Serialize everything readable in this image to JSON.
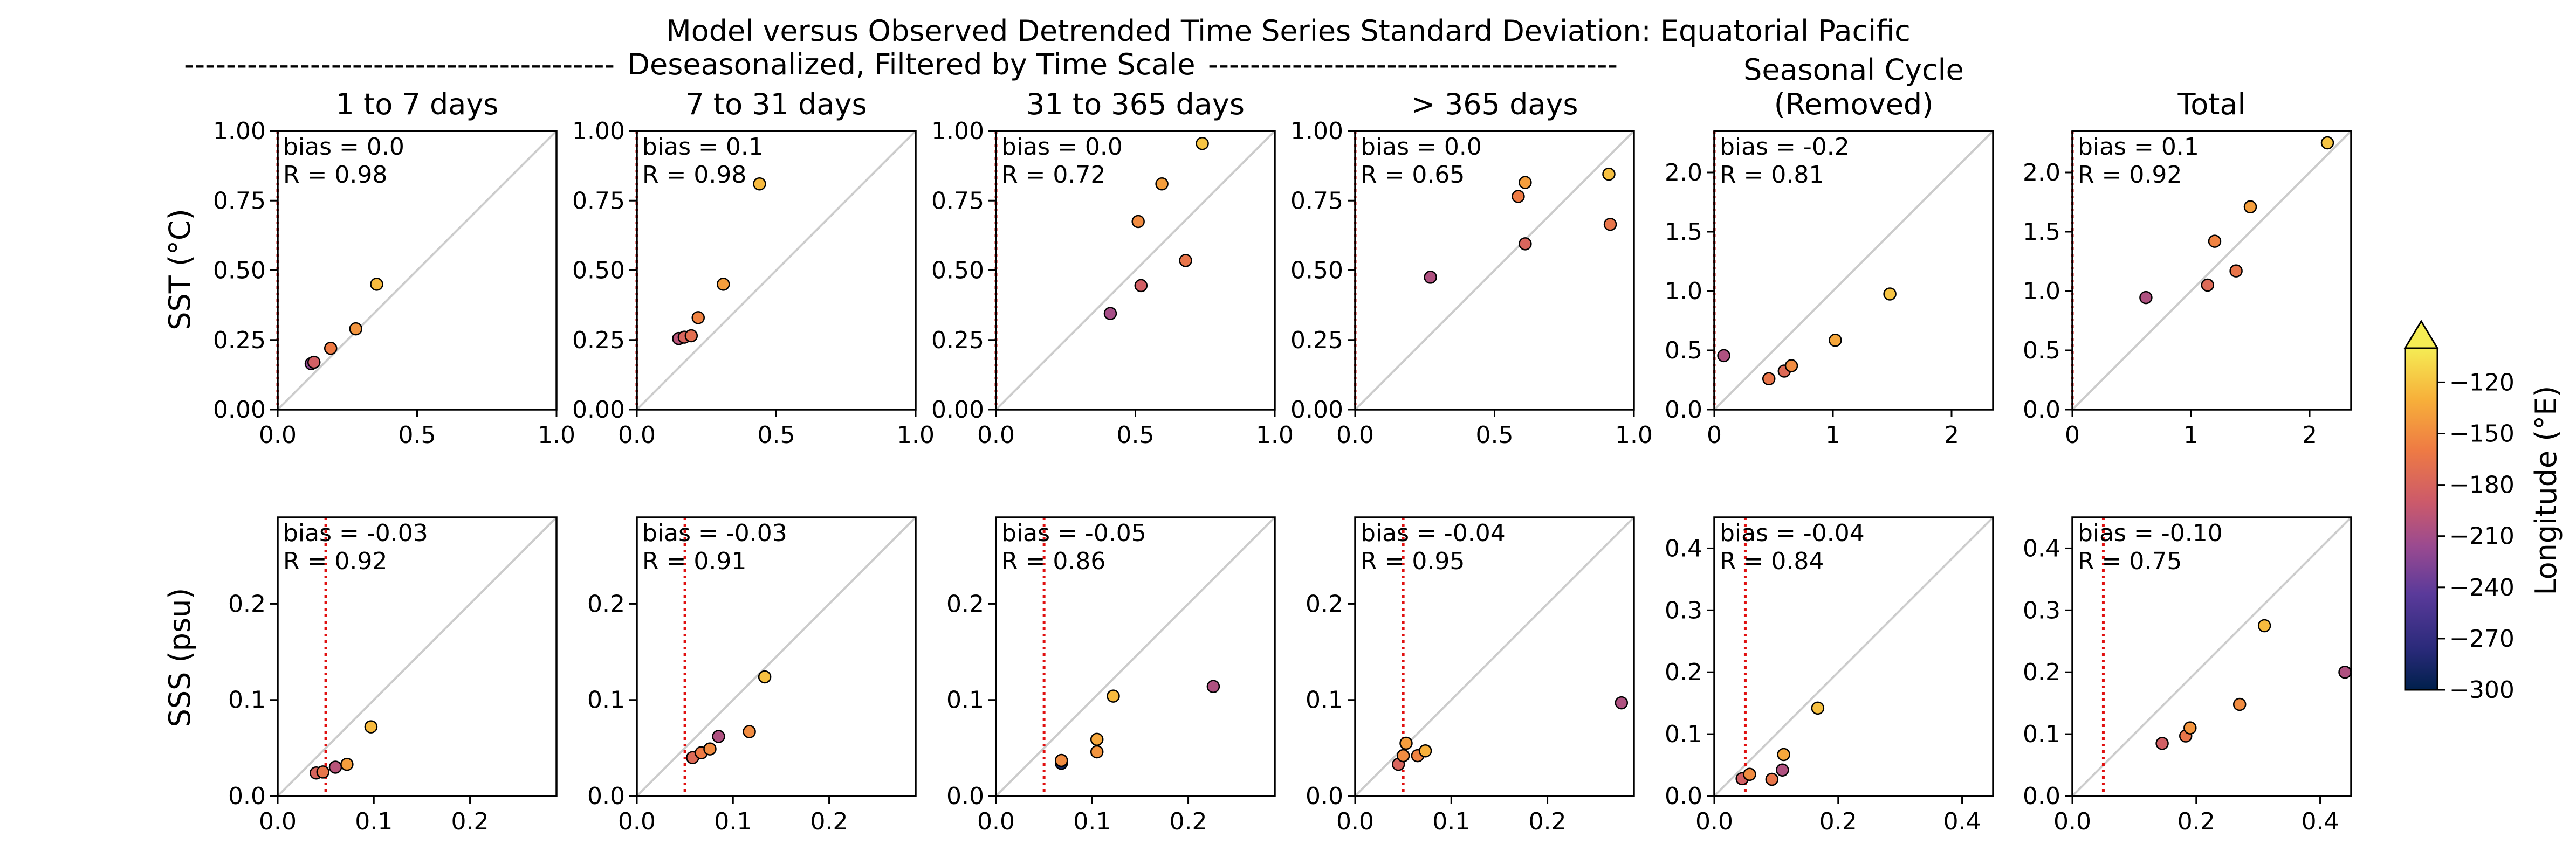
{
  "figure": {
    "title": "Model versus Observed Detrended Time Series Standard Deviation: Equatorial Pacific",
    "subtitle": "Deseasonalized, Filtered by Time Scale",
    "subtitle_dashes_left": "-----------------------------------------",
    "subtitle_dashes_right": "---------------------------------------"
  },
  "row_labels": [
    "SST (°C)",
    "SSS (psu)"
  ],
  "column_titles": [
    [
      "1 to 7 days"
    ],
    [
      "7 to 31 days"
    ],
    [
      "31 to 365 days"
    ],
    [
      ">  365 days"
    ],
    [
      "Seasonal Cycle",
      "(Removed)"
    ],
    [
      "Total"
    ]
  ],
  "colorbar": {
    "label": "Longitude (°E)",
    "ticks": [
      "−120",
      "−150",
      "−180",
      "−210",
      "−240",
      "−270",
      "−300"
    ],
    "tick_values": [
      -120,
      -150,
      -180,
      -210,
      -240,
      -270,
      -300
    ],
    "range": [
      -300,
      -100
    ],
    "extend": "max",
    "colormap": "plasma-like (dark navy → purple → red → orange → yellow)"
  },
  "chart_data": [
    {
      "type": "scatter",
      "row": 0,
      "col": 0,
      "xlim": [
        0,
        1
      ],
      "ylim": [
        0,
        1
      ],
      "xticks": [
        "0.0",
        "0.5",
        "1.0"
      ],
      "yticks": [
        "0.00",
        "0.25",
        "0.50",
        "0.75",
        "1.00"
      ],
      "xtick_values": [
        0,
        0.5,
        1
      ],
      "ytick_values": [
        0,
        0.25,
        0.5,
        0.75,
        1
      ],
      "vline": 0.0,
      "bias_text": "bias = 0.0",
      "r_text": "R = 0.98",
      "points": [
        {
          "x": 0.12,
          "y": 0.165,
          "lon": -220
        },
        {
          "x": 0.13,
          "y": 0.17,
          "lon": -185
        },
        {
          "x": 0.19,
          "y": 0.22,
          "lon": -160
        },
        {
          "x": 0.28,
          "y": 0.29,
          "lon": -145
        },
        {
          "x": 0.355,
          "y": 0.45,
          "lon": -125
        }
      ]
    },
    {
      "type": "scatter",
      "row": 0,
      "col": 1,
      "xlim": [
        0,
        1
      ],
      "ylim": [
        0,
        1
      ],
      "xticks": [
        "0.0",
        "0.5",
        "1.0"
      ],
      "yticks": [
        "0.00",
        "0.25",
        "0.50",
        "0.75",
        "1.00"
      ],
      "xtick_values": [
        0,
        0.5,
        1
      ],
      "ytick_values": [
        0,
        0.25,
        0.5,
        0.75,
        1
      ],
      "vline": 0.0,
      "bias_text": "bias = 0.1",
      "r_text": "R = 0.98",
      "points": [
        {
          "x": 0.15,
          "y": 0.255,
          "lon": -200
        },
        {
          "x": 0.17,
          "y": 0.26,
          "lon": -180
        },
        {
          "x": 0.195,
          "y": 0.265,
          "lon": -170
        },
        {
          "x": 0.22,
          "y": 0.33,
          "lon": -155
        },
        {
          "x": 0.31,
          "y": 0.45,
          "lon": -140
        },
        {
          "x": 0.44,
          "y": 0.81,
          "lon": -125
        }
      ]
    },
    {
      "type": "scatter",
      "row": 0,
      "col": 2,
      "xlim": [
        0,
        1
      ],
      "ylim": [
        0,
        1
      ],
      "xticks": [
        "0.0",
        "0.5",
        "1.0"
      ],
      "yticks": [
        "0.00",
        "0.25",
        "0.50",
        "0.75",
        "1.00"
      ],
      "xtick_values": [
        0,
        0.5,
        1
      ],
      "ytick_values": [
        0,
        0.25,
        0.5,
        0.75,
        1
      ],
      "vline": 0.0,
      "bias_text": "bias = 0.0",
      "r_text": "R = 0.72",
      "points": [
        {
          "x": 0.41,
          "y": 0.345,
          "lon": -210
        },
        {
          "x": 0.52,
          "y": 0.445,
          "lon": -185
        },
        {
          "x": 0.51,
          "y": 0.675,
          "lon": -150
        },
        {
          "x": 0.68,
          "y": 0.535,
          "lon": -165
        },
        {
          "x": 0.595,
          "y": 0.81,
          "lon": -140
        },
        {
          "x": 0.74,
          "y": 0.955,
          "lon": -120
        }
      ]
    },
    {
      "type": "scatter",
      "row": 0,
      "col": 3,
      "xlim": [
        0,
        1
      ],
      "ylim": [
        0,
        1
      ],
      "xticks": [
        "0.0",
        "0.5",
        "1.0"
      ],
      "yticks": [
        "0.00",
        "0.25",
        "0.50",
        "0.75",
        "1.00"
      ],
      "xtick_values": [
        0,
        0.5,
        1
      ],
      "ytick_values": [
        0,
        0.25,
        0.5,
        0.75,
        1
      ],
      "vline": 0.0,
      "bias_text": "bias = 0.0",
      "r_text": "R = 0.65",
      "points": [
        {
          "x": 0.27,
          "y": 0.475,
          "lon": -205
        },
        {
          "x": 0.61,
          "y": 0.595,
          "lon": -180
        },
        {
          "x": 0.585,
          "y": 0.765,
          "lon": -160
        },
        {
          "x": 0.61,
          "y": 0.815,
          "lon": -140
        },
        {
          "x": 0.915,
          "y": 0.665,
          "lon": -165
        },
        {
          "x": 0.91,
          "y": 0.845,
          "lon": -122
        }
      ]
    },
    {
      "type": "scatter",
      "row": 0,
      "col": 4,
      "xlim": [
        0,
        2.35
      ],
      "ylim": [
        0,
        2.35
      ],
      "xticks": [
        "0",
        "1",
        "2"
      ],
      "yticks": [
        "0.0",
        "0.5",
        "1.0",
        "1.5",
        "2.0"
      ],
      "xtick_values": [
        0,
        1,
        2
      ],
      "ytick_values": [
        0,
        0.5,
        1,
        1.5,
        2
      ],
      "vline": 0.0,
      "bias_text": "bias = -0.2",
      "r_text": "R = 0.81",
      "points": [
        {
          "x": 0.08,
          "y": 0.455,
          "lon": -205
        },
        {
          "x": 0.46,
          "y": 0.26,
          "lon": -165
        },
        {
          "x": 0.59,
          "y": 0.325,
          "lon": -175
        },
        {
          "x": 0.65,
          "y": 0.37,
          "lon": -150
        },
        {
          "x": 1.02,
          "y": 0.585,
          "lon": -135
        },
        {
          "x": 1.48,
          "y": 0.975,
          "lon": -120
        }
      ]
    },
    {
      "type": "scatter",
      "row": 0,
      "col": 5,
      "xlim": [
        0,
        2.35
      ],
      "ylim": [
        0,
        2.35
      ],
      "xticks": [
        "0",
        "1",
        "2"
      ],
      "yticks": [
        "0.0",
        "0.5",
        "1.0",
        "1.5",
        "2.0"
      ],
      "xtick_values": [
        0,
        1,
        2
      ],
      "ytick_values": [
        0,
        0.5,
        1,
        1.5,
        2
      ],
      "vline": 0.0,
      "bias_text": "bias = 0.1",
      "r_text": "R = 0.92",
      "points": [
        {
          "x": 0.62,
          "y": 0.945,
          "lon": -205
        },
        {
          "x": 1.14,
          "y": 1.05,
          "lon": -175
        },
        {
          "x": 1.2,
          "y": 1.42,
          "lon": -155
        },
        {
          "x": 1.38,
          "y": 1.17,
          "lon": -165
        },
        {
          "x": 1.5,
          "y": 1.71,
          "lon": -140
        },
        {
          "x": 2.15,
          "y": 2.25,
          "lon": -120
        }
      ]
    },
    {
      "type": "scatter",
      "row": 1,
      "col": 0,
      "xlim": [
        0,
        0.29
      ],
      "ylim": [
        0,
        0.29
      ],
      "xticks": [
        "0.0",
        "0.1",
        "0.2"
      ],
      "yticks": [
        "0.0",
        "0.1",
        "0.2"
      ],
      "xtick_values": [
        0,
        0.1,
        0.2
      ],
      "ytick_values": [
        0,
        0.1,
        0.2
      ],
      "vline": 0.05,
      "bias_text": "bias = -0.03",
      "r_text": "R = 0.92",
      "points": [
        {
          "x": 0.04,
          "y": 0.024,
          "lon": -180
        },
        {
          "x": 0.047,
          "y": 0.025,
          "lon": -165
        },
        {
          "x": 0.06,
          "y": 0.03,
          "lon": -200
        },
        {
          "x": 0.072,
          "y": 0.033,
          "lon": -140
        },
        {
          "x": 0.097,
          "y": 0.072,
          "lon": -125
        }
      ]
    },
    {
      "type": "scatter",
      "row": 1,
      "col": 1,
      "xlim": [
        0,
        0.29
      ],
      "ylim": [
        0,
        0.29
      ],
      "xticks": [
        "0.0",
        "0.1",
        "0.2"
      ],
      "yticks": [
        "0.0",
        "0.1",
        "0.2"
      ],
      "xtick_values": [
        0,
        0.1,
        0.2
      ],
      "ytick_values": [
        0,
        0.1,
        0.2
      ],
      "vline": 0.05,
      "bias_text": "bias = -0.03",
      "r_text": "R = 0.91",
      "points": [
        {
          "x": 0.058,
          "y": 0.04,
          "lon": -175
        },
        {
          "x": 0.067,
          "y": 0.045,
          "lon": -160
        },
        {
          "x": 0.076,
          "y": 0.049,
          "lon": -150
        },
        {
          "x": 0.085,
          "y": 0.062,
          "lon": -205
        },
        {
          "x": 0.117,
          "y": 0.067,
          "lon": -150
        },
        {
          "x": 0.133,
          "y": 0.124,
          "lon": -122
        }
      ]
    },
    {
      "type": "scatter",
      "row": 1,
      "col": 2,
      "xlim": [
        0,
        0.29
      ],
      "ylim": [
        0,
        0.29
      ],
      "xticks": [
        "0.0",
        "0.1",
        "0.2"
      ],
      "yticks": [
        "0.0",
        "0.1",
        "0.2"
      ],
      "xtick_values": [
        0,
        0.1,
        0.2
      ],
      "ytick_values": [
        0,
        0.1,
        0.2
      ],
      "vline": 0.05,
      "bias_text": "bias = -0.05",
      "r_text": "R = 0.86",
      "points": [
        {
          "x": 0.068,
          "y": 0.034,
          "lon": -290
        },
        {
          "x": 0.068,
          "y": 0.037,
          "lon": -150
        },
        {
          "x": 0.105,
          "y": 0.046,
          "lon": -145
        },
        {
          "x": 0.105,
          "y": 0.059,
          "lon": -135
        },
        {
          "x": 0.122,
          "y": 0.104,
          "lon": -125
        },
        {
          "x": 0.226,
          "y": 0.114,
          "lon": -205
        }
      ]
    },
    {
      "type": "scatter",
      "row": 1,
      "col": 3,
      "xlim": [
        0,
        0.29
      ],
      "ylim": [
        0,
        0.29
      ],
      "xticks": [
        "0.0",
        "0.1",
        "0.2"
      ],
      "yticks": [
        "0.0",
        "0.1",
        "0.2"
      ],
      "xtick_values": [
        0,
        0.1,
        0.2
      ],
      "ytick_values": [
        0,
        0.1,
        0.2
      ],
      "vline": 0.05,
      "bias_text": "bias = -0.04",
      "r_text": "R = 0.95",
      "points": [
        {
          "x": 0.045,
          "y": 0.033,
          "lon": -180
        },
        {
          "x": 0.05,
          "y": 0.042,
          "lon": -150
        },
        {
          "x": 0.053,
          "y": 0.055,
          "lon": -140
        },
        {
          "x": 0.065,
          "y": 0.042,
          "lon": -155
        },
        {
          "x": 0.073,
          "y": 0.047,
          "lon": -130
        },
        {
          "x": 0.277,
          "y": 0.097,
          "lon": -205
        }
      ]
    },
    {
      "type": "scatter",
      "row": 1,
      "col": 4,
      "xlim": [
        0,
        0.45
      ],
      "ylim": [
        0,
        0.45
      ],
      "xticks": [
        "0.0",
        "0.2",
        "0.4"
      ],
      "yticks": [
        "0.0",
        "0.1",
        "0.2",
        "0.3",
        "0.4"
      ],
      "xtick_values": [
        0,
        0.2,
        0.4
      ],
      "ytick_values": [
        0,
        0.1,
        0.2,
        0.3,
        0.4
      ],
      "vline": 0.05,
      "bias_text": "bias = -0.04",
      "r_text": "R = 0.84",
      "points": [
        {
          "x": 0.045,
          "y": 0.028,
          "lon": -185
        },
        {
          "x": 0.057,
          "y": 0.035,
          "lon": -150
        },
        {
          "x": 0.093,
          "y": 0.027,
          "lon": -165
        },
        {
          "x": 0.11,
          "y": 0.042,
          "lon": -205
        },
        {
          "x": 0.112,
          "y": 0.067,
          "lon": -135
        },
        {
          "x": 0.167,
          "y": 0.142,
          "lon": -122
        }
      ]
    },
    {
      "type": "scatter",
      "row": 1,
      "col": 5,
      "xlim": [
        0,
        0.45
      ],
      "ylim": [
        0,
        0.45
      ],
      "xticks": [
        "0.0",
        "0.2",
        "0.4"
      ],
      "yticks": [
        "0.0",
        "0.1",
        "0.2",
        "0.3",
        "0.4"
      ],
      "xtick_values": [
        0,
        0.2,
        0.4
      ],
      "ytick_values": [
        0,
        0.1,
        0.2,
        0.3,
        0.4
      ],
      "vline": 0.05,
      "bias_text": "bias = -0.10",
      "r_text": "R = 0.75",
      "points": [
        {
          "x": 0.145,
          "y": 0.085,
          "lon": -185
        },
        {
          "x": 0.183,
          "y": 0.097,
          "lon": -165
        },
        {
          "x": 0.19,
          "y": 0.11,
          "lon": -145
        },
        {
          "x": 0.27,
          "y": 0.148,
          "lon": -150
        },
        {
          "x": 0.31,
          "y": 0.275,
          "lon": -125
        },
        {
          "x": 0.44,
          "y": 0.2,
          "lon": -205
        }
      ]
    }
  ]
}
